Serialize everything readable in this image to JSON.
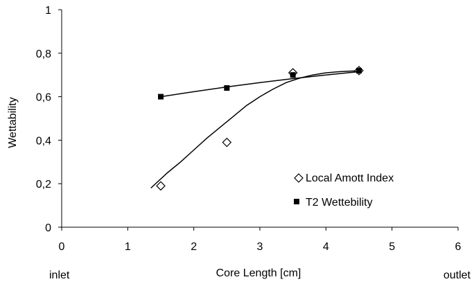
{
  "chart_data": {
    "type": "scatter",
    "title": "",
    "xlabel": "Core Length [cm]",
    "ylabel": "Wettability",
    "xlim": [
      0,
      6
    ],
    "ylim": [
      0,
      1
    ],
    "x_ticks": [
      0,
      1,
      2,
      3,
      4,
      5,
      6
    ],
    "y_ticks": [
      0,
      0.2,
      0.4,
      0.6,
      0.8,
      1
    ],
    "x_tick_labels": [
      "0",
      "1",
      "2",
      "3",
      "4",
      "5",
      "6"
    ],
    "y_tick_labels": [
      "0",
      "0,2",
      "0,4",
      "0,6",
      "0,8",
      "1"
    ],
    "annotations": {
      "left": "inlet",
      "right": "outlet"
    },
    "grid": false,
    "legend_position": "bottom-right",
    "series": [
      {
        "name": "Local Amott Index",
        "marker": "open-diamond",
        "x": [
          1.5,
          2.5,
          3.5,
          4.5
        ],
        "y": [
          0.19,
          0.39,
          0.71,
          0.72
        ],
        "trendline": {
          "x": [
            1.35,
            1.6,
            1.8,
            2.0,
            2.2,
            2.4,
            2.6,
            2.8,
            3.0,
            3.2,
            3.4,
            3.6,
            3.8,
            4.0,
            4.2,
            4.4,
            4.5
          ],
          "y": [
            0.18,
            0.25,
            0.3,
            0.355,
            0.41,
            0.46,
            0.51,
            0.56,
            0.6,
            0.635,
            0.665,
            0.685,
            0.7,
            0.71,
            0.715,
            0.718,
            0.718
          ]
        }
      },
      {
        "name": "T2 Wettebility",
        "marker": "filled-square",
        "x": [
          1.5,
          2.5,
          3.5,
          4.5
        ],
        "y": [
          0.6,
          0.64,
          0.7,
          0.72
        ],
        "trendline": {
          "x": [
            1.5,
            2.0,
            2.5,
            3.0,
            3.5,
            4.0,
            4.5
          ],
          "y": [
            0.6,
            0.623,
            0.645,
            0.665,
            0.683,
            0.7,
            0.715
          ]
        }
      }
    ]
  }
}
